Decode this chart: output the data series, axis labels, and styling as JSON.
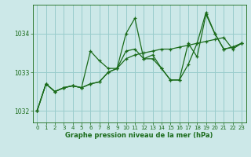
{
  "background_color": "#cce8e8",
  "plot_bg_color": "#cce8e8",
  "grid_color": "#99cccc",
  "line_color": "#1a6b1a",
  "marker_color": "#1a6b1a",
  "xlabel": "Graphe pression niveau de la mer (hPa)",
  "ylim": [
    1031.7,
    1034.75
  ],
  "xlim": [
    -0.5,
    23.5
  ],
  "yticks": [
    1032,
    1033,
    1034
  ],
  "xticks": [
    0,
    1,
    2,
    3,
    4,
    5,
    6,
    7,
    8,
    9,
    10,
    11,
    12,
    13,
    14,
    15,
    16,
    17,
    18,
    19,
    20,
    21,
    22,
    23
  ],
  "series": [
    [
      1032.0,
      1032.7,
      1032.5,
      1032.6,
      1032.65,
      1032.6,
      1033.55,
      1033.3,
      1033.1,
      1033.1,
      1034.0,
      1034.4,
      1033.35,
      1033.45,
      1033.1,
      1032.8,
      1032.8,
      1033.75,
      1033.4,
      1034.5,
      1034.0,
      1033.6,
      1033.65,
      1033.75
    ],
    [
      1032.0,
      1032.7,
      1032.5,
      1032.6,
      1032.65,
      1032.6,
      1032.7,
      1032.75,
      1033.0,
      1033.1,
      1033.35,
      1033.45,
      1033.5,
      1033.55,
      1033.6,
      1033.6,
      1033.65,
      1033.7,
      1033.75,
      1033.8,
      1033.85,
      1033.9,
      1033.6,
      1033.75
    ],
    [
      1032.0,
      1032.7,
      1032.5,
      1032.6,
      1032.65,
      1032.6,
      1032.7,
      1032.75,
      1033.0,
      1033.1,
      1033.55,
      1033.6,
      1033.35,
      1033.35,
      1033.1,
      1032.8,
      1032.8,
      1033.2,
      1033.75,
      1034.55,
      1034.0,
      1033.6,
      1033.65,
      1033.75
    ]
  ]
}
